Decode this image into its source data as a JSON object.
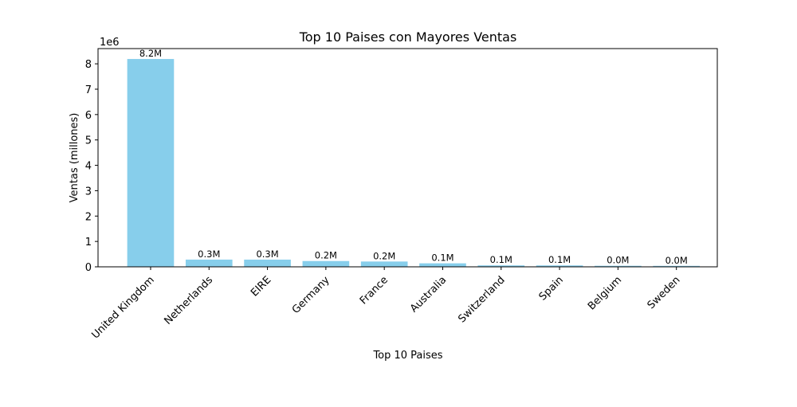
{
  "chart_data": {
    "type": "bar",
    "title": "Top 10 Paises con Mayores Ventas",
    "xlabel": "Top 10 Paises",
    "ylabel": "Ventas (millones)",
    "y_offset_text": "1e6",
    "categories": [
      "United Kingdom",
      "Netherlands",
      "EIRE",
      "Germany",
      "France",
      "Australia",
      "Switzerland",
      "Spain",
      "Belgium",
      "Sweden"
    ],
    "values": [
      8190000,
      285000,
      284000,
      228000,
      209000,
      138000,
      56000,
      55000,
      41000,
      38000
    ],
    "data_labels": [
      "8.2M",
      "0.3M",
      "0.3M",
      "0.2M",
      "0.2M",
      "0.1M",
      "0.1M",
      "0.1M",
      "0.0M",
      "0.0M"
    ],
    "ylim": [
      0,
      8600000
    ],
    "yticks": [
      0,
      1000000,
      2000000,
      3000000,
      4000000,
      5000000,
      6000000,
      7000000,
      8000000
    ],
    "ytick_labels": [
      "0",
      "1",
      "2",
      "3",
      "4",
      "5",
      "6",
      "7",
      "8"
    ],
    "bar_color": "#87CEEB",
    "grid": false
  }
}
